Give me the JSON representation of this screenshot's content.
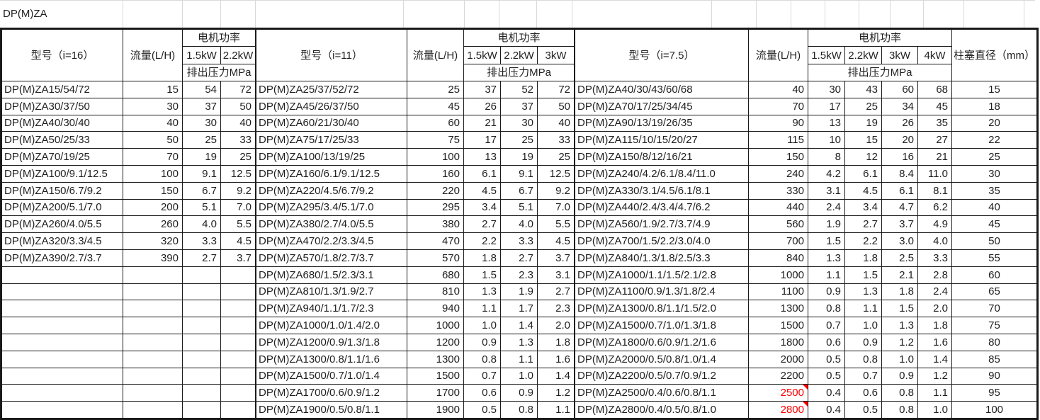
{
  "sheet_title": "DP(M)ZA",
  "colors": {
    "grid_border": "#1a1a1a",
    "faint_gridline": "#d9d9d9",
    "flag_red": "#fe0000",
    "background": "#ffffff"
  },
  "tables": [
    {
      "model_header": "型号（i=16）",
      "flow_header": "流量(L/H)",
      "power_header": "电机功率",
      "pressure_header": "排出压力MPa",
      "kw_labels": [
        "1.5kW",
        "2.2kW"
      ],
      "rows": [
        {
          "model": "DP(M)ZA15/54/72",
          "flow": "15",
          "pressures": [
            "54",
            "72"
          ]
        },
        {
          "model": "DP(M)ZA30/37/50",
          "flow": "30",
          "pressures": [
            "37",
            "50"
          ]
        },
        {
          "model": "DP(M)ZA40/30/40",
          "flow": "40",
          "pressures": [
            "30",
            "40"
          ]
        },
        {
          "model": "DP(M)ZA50/25/33",
          "flow": "50",
          "pressures": [
            "25",
            "33"
          ]
        },
        {
          "model": "DP(M)ZA70/19/25",
          "flow": "70",
          "pressures": [
            "19",
            "25"
          ]
        },
        {
          "model": "DP(M)ZA100/9.1/12.5",
          "flow": "100",
          "pressures": [
            "9.1",
            "12.5"
          ]
        },
        {
          "model": "DP(M)ZA150/6.7/9.2",
          "flow": "150",
          "pressures": [
            "6.7",
            "9.2"
          ]
        },
        {
          "model": "DP(M)ZA200/5.1/7.0",
          "flow": "200",
          "pressures": [
            "5.1",
            "7.0"
          ]
        },
        {
          "model": "DP(M)ZA260/4.0/5.5",
          "flow": "260",
          "pressures": [
            "4.0",
            "5.5"
          ]
        },
        {
          "model": "DP(M)ZA320/3.3/4.5",
          "flow": "320",
          "pressures": [
            "3.3",
            "4.5"
          ]
        },
        {
          "model": "DP(M)ZA390/2.7/3.7",
          "flow": "390",
          "pressures": [
            "2.7",
            "3.7"
          ]
        },
        {
          "model": "",
          "flow": "",
          "pressures": [
            "",
            ""
          ]
        },
        {
          "model": "",
          "flow": "",
          "pressures": [
            "",
            ""
          ]
        },
        {
          "model": "",
          "flow": "",
          "pressures": [
            "",
            ""
          ]
        },
        {
          "model": "",
          "flow": "",
          "pressures": [
            "",
            ""
          ]
        },
        {
          "model": "",
          "flow": "",
          "pressures": [
            "",
            ""
          ]
        },
        {
          "model": "",
          "flow": "",
          "pressures": [
            "",
            ""
          ]
        },
        {
          "model": "",
          "flow": "",
          "pressures": [
            "",
            ""
          ]
        },
        {
          "model": "",
          "flow": "",
          "pressures": [
            "",
            ""
          ]
        },
        {
          "model": "",
          "flow": "",
          "pressures": [
            "",
            ""
          ]
        }
      ]
    },
    {
      "model_header": "型号（i=11）",
      "flow_header": "流量(L/H)",
      "power_header": "电机功率",
      "pressure_header": "排出压力MPa",
      "kw_labels": [
        "1.5kW",
        "2.2kW",
        "3kW"
      ],
      "rows": [
        {
          "model": "DP(M)ZA25/37/52/72",
          "flow": "25",
          "pressures": [
            "37",
            "52",
            "72"
          ]
        },
        {
          "model": "DP(M)ZA45/26/37/50",
          "flow": "45",
          "pressures": [
            "26",
            "37",
            "50"
          ]
        },
        {
          "model": "DP(M)ZA60/21/30/40",
          "flow": "60",
          "pressures": [
            "21",
            "30",
            "40"
          ]
        },
        {
          "model": "DP(M)ZA75/17/25/33",
          "flow": "75",
          "pressures": [
            "17",
            "25",
            "33"
          ]
        },
        {
          "model": "DP(M)ZA100/13/19/25",
          "flow": "100",
          "pressures": [
            "13",
            "19",
            "25"
          ]
        },
        {
          "model": "DP(M)ZA160/6.1/9.1/12.5",
          "flow": "160",
          "pressures": [
            "6.1",
            "9.1",
            "12.5"
          ]
        },
        {
          "model": "DP(M)ZA220/4.5/6.7/9.2",
          "flow": "220",
          "pressures": [
            "4.5",
            "6.7",
            "9.2"
          ]
        },
        {
          "model": "DP(M)ZA295/3.4/5.1/7.0",
          "flow": "295",
          "pressures": [
            "3.4",
            "5.1",
            "7.0"
          ]
        },
        {
          "model": "DP(M)ZA380/2.7/4.0/5.5",
          "flow": "380",
          "pressures": [
            "2.7",
            "4.0",
            "5.5"
          ]
        },
        {
          "model": "DP(M)ZA470/2.2/3.3/4.5",
          "flow": "470",
          "pressures": [
            "2.2",
            "3.3",
            "4.5"
          ]
        },
        {
          "model": "DP(M)ZA570/1.8/2.7/3.7",
          "flow": "570",
          "pressures": [
            "1.8",
            "2.7",
            "3.7"
          ]
        },
        {
          "model": "DP(M)ZA680/1.5/2.3/3.1",
          "flow": "680",
          "pressures": [
            "1.5",
            "2.3",
            "3.1"
          ]
        },
        {
          "model": "DP(M)ZA810/1.3/1.9/2.7",
          "flow": "810",
          "pressures": [
            "1.3",
            "1.9",
            "2.7"
          ]
        },
        {
          "model": "DP(M)ZA940/1.1/1.7/2.3",
          "flow": "940",
          "pressures": [
            "1.1",
            "1.7",
            "2.3"
          ]
        },
        {
          "model": "DP(M)ZA1000/1.0/1.4/2.0",
          "flow": "1000",
          "pressures": [
            "1.0",
            "1.4",
            "2.0"
          ]
        },
        {
          "model": "DP(M)ZA1200/0.9/1.3/1.8",
          "flow": "1200",
          "pressures": [
            "0.9",
            "1.3",
            "1.8"
          ]
        },
        {
          "model": "DP(M)ZA1300/0.8/1.1/1.6",
          "flow": "1300",
          "pressures": [
            "0.8",
            "1.1",
            "1.6"
          ]
        },
        {
          "model": "DP(M)ZA1500/0.7/1.0/1.4",
          "flow": "1500",
          "pressures": [
            "0.7",
            "1.0",
            "1.4"
          ]
        },
        {
          "model": "DP(M)ZA1700/0.6/0.9/1.2",
          "flow": "1700",
          "pressures": [
            "0.6",
            "0.9",
            "1.2"
          ]
        },
        {
          "model": "DP(M)ZA1900/0.5/0.8/1.1",
          "flow": "1900",
          "pressures": [
            "0.5",
            "0.8",
            "1.1"
          ]
        }
      ]
    },
    {
      "model_header": "型号（i=7.5）",
      "flow_header": "流量(L/H)",
      "power_header": "电机功率",
      "pressure_header": "排出压力MPa",
      "plunger_header": "柱塞直径（mm）",
      "kw_labels": [
        "1.5kW",
        "2.2kW",
        "3kW",
        "4kW"
      ],
      "rows": [
        {
          "model": "DP(M)ZA40/30/43/60/68",
          "flow": "40",
          "pressures": [
            "30",
            "43",
            "60",
            "68"
          ],
          "plunger": "15"
        },
        {
          "model": "DP(M)ZA70/17/25/34/45",
          "flow": "70",
          "pressures": [
            "17",
            "25",
            "34",
            "45"
          ],
          "plunger": "18"
        },
        {
          "model": "DP(M)ZA90/13/19/26/35",
          "flow": "90",
          "pressures": [
            "13",
            "19",
            "26",
            "35"
          ],
          "plunger": "20"
        },
        {
          "model": "DP(M)ZA115/10/15/20/27",
          "flow": "115",
          "pressures": [
            "10",
            "15",
            "20",
            "27"
          ],
          "plunger": "22"
        },
        {
          "model": "DP(M)ZA150/8/12/16/21",
          "flow": "150",
          "pressures": [
            "8",
            "12",
            "16",
            "21"
          ],
          "plunger": "25"
        },
        {
          "model": "DP(M)ZA240/4.2/6.1/8.4/11.0",
          "flow": "240",
          "pressures": [
            "4.2",
            "6.1",
            "8.4",
            "11.0"
          ],
          "plunger": "30"
        },
        {
          "model": "DP(M)ZA330/3.1/4.5/6.1/8.1",
          "flow": "330",
          "pressures": [
            "3.1",
            "4.5",
            "6.1",
            "8.1"
          ],
          "plunger": "35"
        },
        {
          "model": "DP(M)ZA440/2.4/3.4/4.7/6.2",
          "flow": "440",
          "pressures": [
            "2.4",
            "3.4",
            "4.7",
            "6.2"
          ],
          "plunger": "40"
        },
        {
          "model": "DP(M)ZA560/1.9/2.7/3.7/4.9",
          "flow": "560",
          "pressures": [
            "1.9",
            "2.7",
            "3.7",
            "4.9"
          ],
          "plunger": "45"
        },
        {
          "model": "DP(M)ZA700/1.5/2.2/3.0/4.0",
          "flow": "700",
          "pressures": [
            "1.5",
            "2.2",
            "3.0",
            "4.0"
          ],
          "plunger": "50"
        },
        {
          "model": "DP(M)ZA840/1.3/1.8/2.5/3.3",
          "flow": "840",
          "pressures": [
            "1.3",
            "1.8",
            "2.5",
            "3.3"
          ],
          "plunger": "55"
        },
        {
          "model": "DP(M)ZA1000/1.1/1.5/2.1/2.8",
          "flow": "1000",
          "pressures": [
            "1.1",
            "1.5",
            "2.1",
            "2.8"
          ],
          "plunger": "60"
        },
        {
          "model": "DP(M)ZA1100/0.9/1.3/1.8/2.4",
          "flow": "1100",
          "pressures": [
            "0.9",
            "1.3",
            "1.8",
            "2.4"
          ],
          "plunger": "65"
        },
        {
          "model": "DP(M)ZA1300/0.8/1.1/1.5/2.0",
          "flow": "1300",
          "pressures": [
            "0.8",
            "1.1",
            "1.5",
            "2.0"
          ],
          "plunger": "70"
        },
        {
          "model": "DP(M)ZA1500/0.7/1.0/1.3/1.8",
          "flow": "1500",
          "pressures": [
            "0.7",
            "1.0",
            "1.3",
            "1.8"
          ],
          "plunger": "75"
        },
        {
          "model": "DP(M)ZA1800/0.6/0.9/1.2/1.6",
          "flow": "1800",
          "pressures": [
            "0.6",
            "0.9",
            "1.2",
            "1.6"
          ],
          "plunger": "80"
        },
        {
          "model": "DP(M)ZA2000/0.5/0.8/1.0/1.4",
          "flow": "2000",
          "pressures": [
            "0.5",
            "0.8",
            "1.0",
            "1.4"
          ],
          "plunger": "85"
        },
        {
          "model": "DP(M)ZA2200/0.5/0.7/0.9/1.2",
          "flow": "2200",
          "pressures": [
            "0.5",
            "0.7",
            "0.9",
            "1.2"
          ],
          "plunger": "90"
        },
        {
          "model": "DP(M)ZA2500/0.4/0.6/0.8/1.1",
          "flow": "2500",
          "flow_red": true,
          "pressures": [
            "0.4",
            "0.6",
            "0.8",
            "1.1"
          ],
          "plunger": "95"
        },
        {
          "model": "DP(M)ZA2800/0.4/0.5/0.8/1.0",
          "flow": "2800",
          "flow_red": true,
          "pressures": [
            "0.4",
            "0.5",
            "0.8",
            "1.0"
          ],
          "plunger": "100"
        }
      ]
    }
  ]
}
